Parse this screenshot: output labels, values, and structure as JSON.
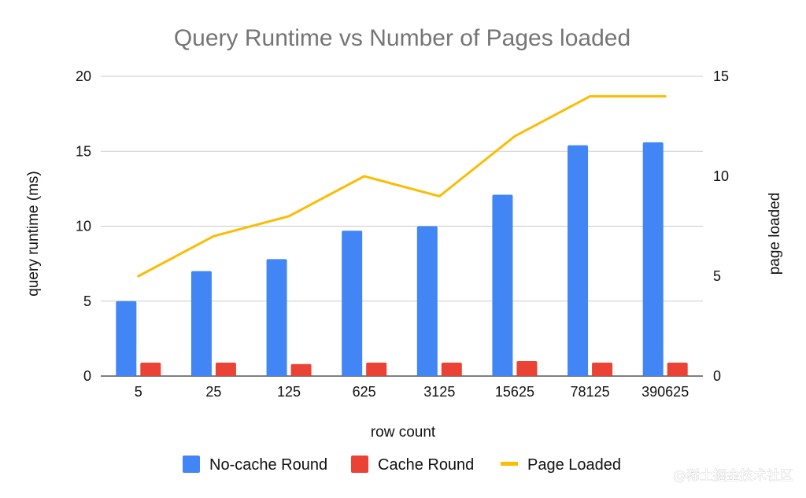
{
  "chart_data": {
    "type": "bar",
    "title": "Query Runtime vs Number of Pages loaded",
    "xlabel": "row count",
    "ylabel": "query runtime (ms)",
    "y2label": "page loaded",
    "categories": [
      "5",
      "25",
      "125",
      "625",
      "3125",
      "15625",
      "78125",
      "390625"
    ],
    "ylim": [
      0,
      20
    ],
    "y2lim": [
      0,
      15
    ],
    "yticks": [
      "0",
      "5",
      "10",
      "15",
      "20"
    ],
    "y2ticks": [
      "0",
      "5",
      "10",
      "15"
    ],
    "grid": true,
    "legend_position": "bottom",
    "series": [
      {
        "name": "No-cache Round",
        "type": "bar",
        "axis": "left",
        "color": "#4285f4",
        "values": [
          5.0,
          7.0,
          7.8,
          9.7,
          10.0,
          12.1,
          15.4,
          15.6
        ]
      },
      {
        "name": "Cache Round",
        "type": "bar",
        "axis": "left",
        "color": "#ea4335",
        "values": [
          0.9,
          0.9,
          0.8,
          0.9,
          0.9,
          1.0,
          0.9,
          0.9
        ]
      },
      {
        "name": "Page Loaded",
        "type": "line",
        "axis": "right",
        "color": "#fbbc04",
        "values": [
          5,
          7,
          8,
          10,
          9,
          12,
          14,
          14
        ]
      }
    ]
  },
  "watermark": "@稀土掘金技术社区"
}
